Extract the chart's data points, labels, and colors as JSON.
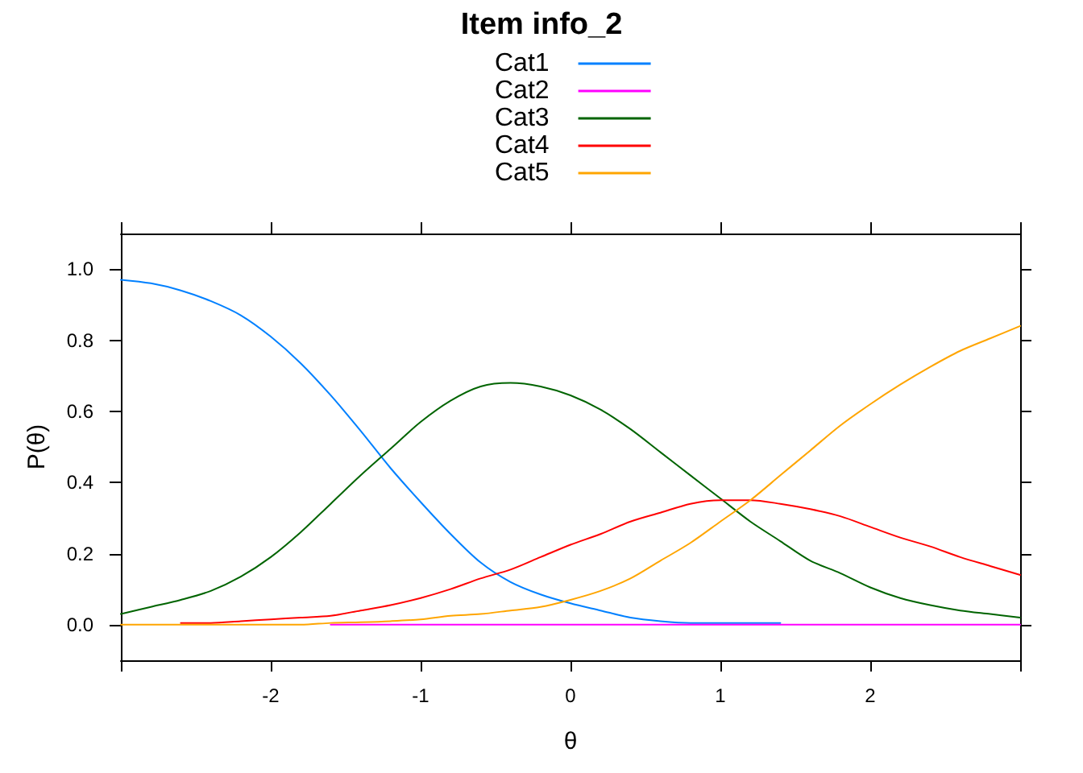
{
  "chart_data": {
    "type": "line",
    "title": "Item info_2",
    "xlabel": "θ",
    "ylabel": "P(θ)",
    "x": [
      -3,
      -2.8,
      -2.6,
      -2.4,
      -2.2,
      -2,
      -1.8,
      -1.6,
      -1.4,
      -1.2,
      -1,
      -0.8,
      -0.6,
      -0.4,
      -0.2,
      0,
      0.2,
      0.4,
      0.6,
      0.8,
      1,
      1.2,
      1.4,
      1.6,
      1.8,
      2,
      2.2,
      2.4,
      2.6,
      2.8,
      3
    ],
    "series": [
      {
        "name": "Cat1",
        "color": "#0080ff",
        "values": [
          0.97,
          0.96,
          0.94,
          0.91,
          0.87,
          0.81,
          0.735,
          0.645,
          0.545,
          0.44,
          0.345,
          0.255,
          0.175,
          0.12,
          0.085,
          0.06,
          0.04,
          0.02,
          0.01,
          0.005,
          0.005,
          0.005,
          0.005,
          null,
          null,
          null,
          null,
          null,
          null,
          null,
          null
        ]
      },
      {
        "name": "Cat2",
        "color": "#ff00ff",
        "values": [
          null,
          null,
          null,
          null,
          null,
          null,
          null,
          0,
          0,
          0,
          0,
          0,
          0,
          0,
          0,
          0,
          0,
          0,
          0,
          0,
          0,
          0,
          0,
          0,
          0,
          0,
          0,
          0,
          0,
          0,
          0
        ]
      },
      {
        "name": "Cat3",
        "color": "#006400",
        "values": [
          0.03,
          0.05,
          0.07,
          0.095,
          0.135,
          0.19,
          0.26,
          0.34,
          0.42,
          0.495,
          0.57,
          0.63,
          0.67,
          0.68,
          0.67,
          0.645,
          0.605,
          0.55,
          0.485,
          0.42,
          0.355,
          0.29,
          0.235,
          0.18,
          0.145,
          0.105,
          0.075,
          0.055,
          0.04,
          0.03,
          0.02
        ]
      },
      {
        "name": "Cat4",
        "color": "#ff0000",
        "values": [
          null,
          null,
          0.005,
          0.005,
          0.01,
          0.015,
          0.02,
          0.025,
          0.04,
          0.055,
          0.075,
          0.1,
          0.13,
          0.155,
          0.19,
          0.225,
          0.255,
          0.29,
          0.315,
          0.34,
          0.35,
          0.35,
          0.34,
          0.325,
          0.305,
          0.275,
          0.245,
          0.22,
          0.19,
          0.165,
          0.14
        ]
      },
      {
        "name": "Cat5",
        "color": "#ffa500",
        "values": [
          0,
          0,
          0,
          0,
          0,
          0,
          0,
          0.005,
          0.007,
          0.01,
          0.015,
          0.025,
          0.03,
          0.04,
          0.05,
          0.07,
          0.095,
          0.13,
          0.18,
          0.23,
          0.29,
          0.35,
          0.42,
          0.49,
          0.56,
          0.62,
          0.675,
          0.725,
          0.77,
          0.805,
          0.84
        ]
      }
    ],
    "xlim": [
      -3,
      3
    ],
    "ylim": [
      -0.1,
      1.1
    ],
    "xticks": [
      {
        "value": -3,
        "label": null
      },
      -2,
      -1,
      0,
      1,
      2,
      {
        "value": 3,
        "label": null
      }
    ],
    "yticks": [
      {
        "value": 0,
        "label": "0.0"
      },
      0.2,
      0.4,
      0.6,
      0.8,
      {
        "value": 1,
        "label": "1.0"
      }
    ],
    "legend": "top",
    "marker": "none",
    "line_style": "solid"
  }
}
